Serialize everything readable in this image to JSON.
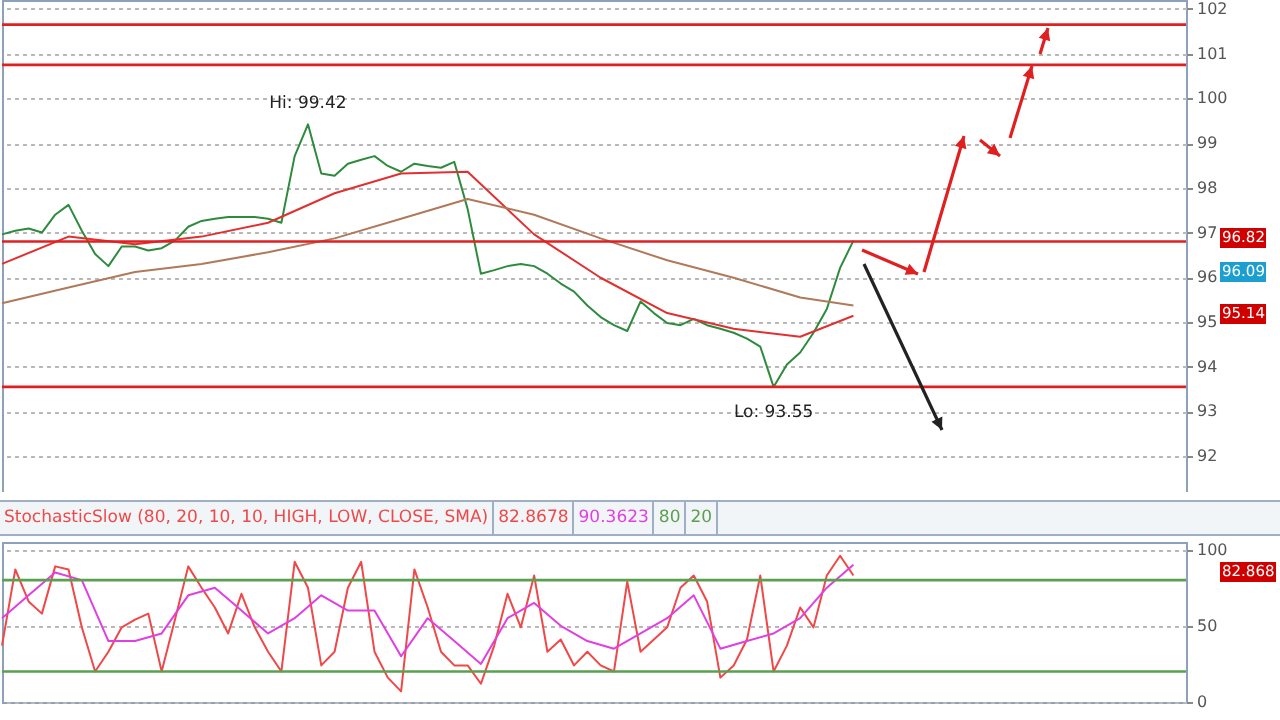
{
  "chart_data": [
    {
      "type": "line",
      "categories": [
        null,
        null,
        null,
        null,
        null,
        null,
        null,
        null,
        null,
        null,
        null,
        null,
        null,
        null,
        null,
        null,
        null,
        null,
        null,
        null,
        null,
        null,
        null,
        null,
        null,
        null,
        null,
        null,
        null,
        null,
        null,
        null,
        null,
        null,
        null,
        null,
        null,
        null,
        null,
        null,
        null,
        null,
        null,
        null,
        null,
        null,
        null,
        null,
        null,
        null,
        null,
        null,
        null,
        null,
        null,
        null,
        null,
        null,
        null,
        null,
        null,
        null,
        null,
        null,
        null,
        null,
        null,
        null,
        null,
        null,
        null,
        null,
        null,
        null,
        null,
        null,
        null,
        null,
        null,
        null,
        null,
        null,
        null,
        null,
        null,
        null,
        null,
        null,
        null,
        null
      ],
      "series": [
        {
          "color": "#2e8b3e",
          "values": [
            96.96,
            97.04,
            97.09,
            97.0,
            97.4,
            97.62,
            97.04,
            96.52,
            96.25,
            96.69,
            96.69,
            96.6,
            96.65,
            96.82,
            97.13,
            97.26,
            97.31,
            97.35,
            97.35,
            97.35,
            97.31,
            97.22,
            98.71,
            99.42,
            98.32,
            98.27,
            98.54,
            98.63,
            98.71,
            98.49,
            98.36,
            98.54,
            98.49,
            98.45,
            98.58,
            97.53,
            96.08,
            96.16,
            96.25,
            96.3,
            96.25,
            96.08,
            95.86,
            95.68,
            95.37,
            95.11,
            94.93,
            94.8,
            95.46,
            95.2,
            94.98,
            94.93,
            95.07,
            94.93,
            94.85,
            94.76,
            94.63,
            94.45,
            93.55,
            94.05,
            94.32,
            94.76,
            95.29,
            96.21,
            96.82,
            null,
            null,
            null,
            null,
            null,
            null,
            null,
            null,
            null,
            null,
            null,
            null,
            null,
            null,
            null,
            null,
            null,
            null,
            null,
            null,
            null,
            null,
            null,
            null,
            null
          ]
        },
        {
          "color": "#e03030",
          "values": [
            96.3,
            null,
            null,
            null,
            null,
            96.91,
            null,
            null,
            null,
            null,
            96.74,
            null,
            null,
            null,
            null,
            96.91,
            null,
            null,
            null,
            null,
            97.22,
            null,
            null,
            null,
            null,
            97.88,
            null,
            null,
            null,
            null,
            98.32,
            null,
            null,
            null,
            null,
            98.36,
            null,
            null,
            null,
            null,
            96.96,
            null,
            null,
            null,
            null,
            95.99,
            null,
            null,
            null,
            null,
            95.2,
            null,
            null,
            null,
            null,
            94.85,
            null,
            null,
            null,
            null,
            94.67,
            null,
            null,
            null,
            95.14,
            null,
            null,
            null,
            null,
            null,
            null,
            null,
            null,
            null,
            null,
            null,
            null,
            null,
            null,
            null,
            null,
            null,
            null,
            null,
            null,
            null,
            null,
            null,
            null,
            null
          ]
        },
        {
          "color": "#b07a5a",
          "values": [
            95.42,
            null,
            null,
            null,
            null,
            95.77,
            null,
            null,
            null,
            null,
            96.12,
            null,
            null,
            null,
            null,
            96.3,
            null,
            null,
            null,
            null,
            96.56,
            null,
            null,
            null,
            null,
            96.87,
            null,
            null,
            null,
            null,
            97.31,
            null,
            null,
            null,
            null,
            97.75,
            null,
            null,
            null,
            null,
            97.4,
            null,
            null,
            null,
            null,
            96.87,
            null,
            null,
            null,
            null,
            96.38,
            null,
            null,
            null,
            null,
            95.99,
            null,
            null,
            null,
            null,
            95.55,
            null,
            null,
            null,
            95.37,
            null,
            null,
            null,
            null,
            null,
            null,
            null,
            null,
            null,
            null,
            null,
            null,
            null,
            null,
            null,
            null,
            null,
            null,
            null,
            null,
            null,
            null,
            null,
            null,
            null
          ]
        }
      ],
      "ylim": [
        91.2,
        102.2
      ],
      "yticks": [
        92,
        93,
        94,
        95,
        96,
        97,
        98,
        99,
        100,
        101,
        102
      ],
      "grid": "y",
      "ref_lines": [
        {
          "axis": "y",
          "value": 101.65,
          "color": "#e02020"
        },
        {
          "axis": "y",
          "value": 100.75,
          "color": "#e02020"
        },
        {
          "axis": "y",
          "value": 96.8,
          "color": "#e02020"
        },
        {
          "axis": "y",
          "value": 93.55,
          "color": "#e02020"
        }
      ],
      "annotations": [
        {
          "text": "Hi: 99.42",
          "y": 99.42
        },
        {
          "text": "Lo: 93.55",
          "y": 93.55
        },
        "96.82",
        "96.09",
        "95.14"
      ]
    },
    {
      "type": "line",
      "title": "StochasticSlow (80, 20, 10, 10, HIGH, LOW, CLOSE, SMA)",
      "categories": [
        null,
        null,
        null,
        null,
        null,
        null,
        null,
        null,
        null,
        null,
        null,
        null,
        null,
        null,
        null,
        null,
        null,
        null,
        null,
        null,
        null,
        null,
        null,
        null,
        null,
        null,
        null,
        null,
        null,
        null,
        null,
        null,
        null,
        null,
        null,
        null,
        null,
        null,
        null,
        null,
        null,
        null,
        null,
        null,
        null,
        null,
        null,
        null,
        null,
        null,
        null,
        null,
        null,
        null,
        null,
        null,
        null,
        null,
        null,
        null,
        null,
        null,
        null,
        null,
        null,
        null,
        null,
        null,
        null,
        null,
        null,
        null,
        null,
        null,
        null,
        null,
        null,
        null,
        null,
        null,
        null,
        null,
        null,
        null,
        null,
        null,
        null,
        null,
        null,
        null
      ],
      "series": [
        {
          "color": "#f04848",
          "values": [
            37,
            87,
            66,
            58,
            89,
            87,
            49,
            20,
            33,
            49,
            54,
            58,
            20,
            54,
            89,
            75,
            62,
            45,
            71,
            49,
            33,
            20,
            92,
            75,
            24,
            33,
            75,
            92,
            33,
            16,
            7,
            87,
            62,
            33,
            24,
            24,
            12,
            37,
            71,
            49,
            83,
            33,
            41,
            24,
            33,
            24,
            20,
            79,
            33,
            41,
            49,
            75,
            83,
            66,
            16,
            24,
            41,
            83,
            20,
            37,
            62,
            49,
            83,
            96,
            83,
            null,
            null,
            null,
            null,
            null,
            null,
            null,
            null,
            null,
            null,
            null,
            null,
            null,
            null,
            null,
            null,
            null,
            null,
            null,
            null,
            null,
            null,
            null,
            null,
            null
          ]
        },
        {
          "color": "#e040e0",
          "values": [
            55,
            null,
            70,
            null,
            85,
            null,
            80,
            null,
            40,
            null,
            40,
            null,
            45,
            null,
            70,
            null,
            75,
            null,
            60,
            null,
            45,
            null,
            55,
            null,
            70,
            null,
            60,
            null,
            60,
            null,
            30,
            null,
            55,
            null,
            40,
            null,
            25,
            null,
            55,
            null,
            65,
            null,
            50,
            null,
            40,
            null,
            35,
            null,
            45,
            null,
            55,
            null,
            70,
            null,
            35,
            null,
            40,
            null,
            45,
            null,
            55,
            null,
            75,
            null,
            90,
            null,
            null,
            null,
            null,
            null,
            null,
            null,
            null,
            null,
            null,
            null,
            null,
            null,
            null,
            null,
            null,
            null,
            null,
            null,
            null,
            null,
            null,
            null,
            null,
            null
          ]
        }
      ],
      "ylim": [
        0,
        105
      ],
      "yticks": [
        0,
        50,
        100
      ],
      "grid": "y",
      "ref_lines": [
        {
          "axis": "y",
          "value": 80,
          "color": "#5aa050"
        },
        {
          "axis": "y",
          "value": 20,
          "color": "#5aa050"
        }
      ],
      "annotations": [
        "82.8678",
        "90.3623",
        "80",
        "20",
        "82.868"
      ]
    }
  ]
}
